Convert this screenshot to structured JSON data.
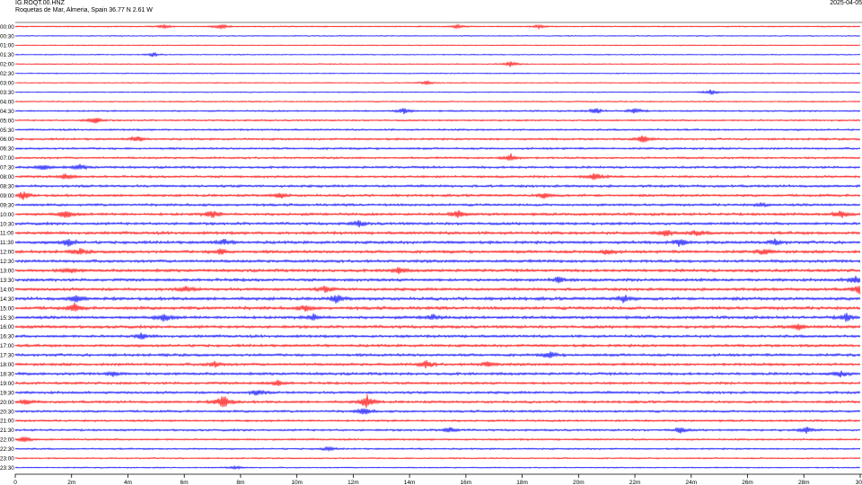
{
  "header": {
    "station": "IG.ROQT.00.HNZ",
    "location": "Roquetas de Mar, Almeria, Spain  36.77 N 2.61 W",
    "date": "2025-04-05"
  },
  "colors": {
    "even_row": "#ff0000",
    "odd_row": "#0000ff",
    "axis": "#000000"
  },
  "chart_data": {
    "type": "helicorder",
    "row_labels": [
      "00:00",
      "00:30",
      "01:00",
      "01:30",
      "02:00",
      "02:30",
      "03:00",
      "03:30",
      "04:00",
      "04:30",
      "05:00",
      "05:30",
      "06:00",
      "06:30",
      "07:00",
      "07:30",
      "08:00",
      "08:30",
      "09:00",
      "09:30",
      "10:00",
      "10:30",
      "11:00",
      "11:30",
      "12:00",
      "12:30",
      "13:00",
      "13:30",
      "14:00",
      "14:30",
      "15:00",
      "15:30",
      "16:00",
      "16:30",
      "17:00",
      "17:30",
      "18:00",
      "18:30",
      "19:00",
      "19:30",
      "20:00",
      "20:30",
      "21:00",
      "21:30",
      "22:00",
      "22:30",
      "23:00",
      "23:30"
    ],
    "x_ticks": [
      "0",
      "2m",
      "4m",
      "6m",
      "8m",
      "10m",
      "12m",
      "14m",
      "16m",
      "18m",
      "20m",
      "22m",
      "24m",
      "26m",
      "28m",
      "30"
    ],
    "x_range_minutes": [
      0,
      30
    ],
    "row_interval_minutes": 30,
    "noise_levels": [
      0.6,
      0.5,
      0.5,
      0.5,
      0.5,
      0.5,
      0.5,
      0.5,
      0.6,
      0.8,
      0.8,
      0.9,
      1.0,
      1.0,
      1.0,
      1.1,
      1.1,
      1.2,
      1.2,
      1.2,
      1.3,
      1.3,
      1.4,
      1.4,
      1.4,
      1.4,
      1.4,
      1.4,
      1.4,
      1.5,
      1.5,
      1.4,
      1.4,
      1.3,
      1.3,
      1.3,
      1.3,
      1.3,
      1.2,
      1.2,
      1.2,
      1.1,
      1.0,
      1.0,
      0.9,
      0.8,
      0.7,
      0.6
    ],
    "events": [
      {
        "row": 0,
        "minute": 5.3,
        "amp": 2
      },
      {
        "row": 0,
        "minute": 7.3,
        "amp": 3
      },
      {
        "row": 0,
        "minute": 15.7,
        "amp": 2
      },
      {
        "row": 0,
        "minute": 18.6,
        "amp": 2
      },
      {
        "row": 3,
        "minute": 4.9,
        "amp": 2
      },
      {
        "row": 4,
        "minute": 17.6,
        "amp": 3
      },
      {
        "row": 6,
        "minute": 14.6,
        "amp": 2
      },
      {
        "row": 7,
        "minute": 24.7,
        "amp": 3
      },
      {
        "row": 9,
        "minute": 13.8,
        "amp": 3
      },
      {
        "row": 9,
        "minute": 20.6,
        "amp": 3
      },
      {
        "row": 9,
        "minute": 22.0,
        "amp": 3
      },
      {
        "row": 10,
        "minute": 2.8,
        "amp": 4
      },
      {
        "row": 12,
        "minute": 4.3,
        "amp": 3
      },
      {
        "row": 12,
        "minute": 22.3,
        "amp": 4
      },
      {
        "row": 14,
        "minute": 17.6,
        "amp": 4
      },
      {
        "row": 15,
        "minute": 1.0,
        "amp": 3
      },
      {
        "row": 15,
        "minute": 2.3,
        "amp": 3
      },
      {
        "row": 16,
        "minute": 1.8,
        "amp": 3
      },
      {
        "row": 16,
        "minute": 20.6,
        "amp": 4
      },
      {
        "row": 18,
        "minute": 0.3,
        "amp": 4
      },
      {
        "row": 18,
        "minute": 9.4,
        "amp": 3
      },
      {
        "row": 18,
        "minute": 18.8,
        "amp": 3
      },
      {
        "row": 19,
        "minute": 26.5,
        "amp": 2
      },
      {
        "row": 20,
        "minute": 1.8,
        "amp": 4
      },
      {
        "row": 20,
        "minute": 7.0,
        "amp": 4
      },
      {
        "row": 20,
        "minute": 15.7,
        "amp": 4
      },
      {
        "row": 20,
        "minute": 29.3,
        "amp": 4
      },
      {
        "row": 21,
        "minute": 12.2,
        "amp": 3
      },
      {
        "row": 22,
        "minute": 23.1,
        "amp": 4
      },
      {
        "row": 22,
        "minute": 24.2,
        "amp": 3
      },
      {
        "row": 23,
        "minute": 1.9,
        "amp": 4
      },
      {
        "row": 23,
        "minute": 7.4,
        "amp": 3
      },
      {
        "row": 23,
        "minute": 23.6,
        "amp": 4
      },
      {
        "row": 23,
        "minute": 27.0,
        "amp": 3
      },
      {
        "row": 24,
        "minute": 2.3,
        "amp": 3
      },
      {
        "row": 24,
        "minute": 7.3,
        "amp": 3
      },
      {
        "row": 24,
        "minute": 21.0,
        "amp": 3
      },
      {
        "row": 24,
        "minute": 26.6,
        "amp": 3
      },
      {
        "row": 26,
        "minute": 1.9,
        "amp": 3
      },
      {
        "row": 26,
        "minute": 13.6,
        "amp": 3
      },
      {
        "row": 27,
        "minute": 19.3,
        "amp": 3
      },
      {
        "row": 27,
        "minute": 29.8,
        "amp": 4
      },
      {
        "row": 28,
        "minute": 6.1,
        "amp": 3
      },
      {
        "row": 28,
        "minute": 11.0,
        "amp": 3
      },
      {
        "row": 28,
        "minute": 30.0,
        "amp": 5
      },
      {
        "row": 29,
        "minute": 2.2,
        "amp": 4
      },
      {
        "row": 29,
        "minute": 11.4,
        "amp": 4
      },
      {
        "row": 29,
        "minute": 21.6,
        "amp": 4
      },
      {
        "row": 30,
        "minute": 2.1,
        "amp": 4
      },
      {
        "row": 30,
        "minute": 10.3,
        "amp": 3
      },
      {
        "row": 31,
        "minute": 5.3,
        "amp": 4
      },
      {
        "row": 31,
        "minute": 10.6,
        "amp": 3
      },
      {
        "row": 31,
        "minute": 14.8,
        "amp": 3
      },
      {
        "row": 31,
        "minute": 29.5,
        "amp": 4
      },
      {
        "row": 32,
        "minute": 27.8,
        "amp": 3
      },
      {
        "row": 33,
        "minute": 4.5,
        "amp": 3
      },
      {
        "row": 35,
        "minute": 19.0,
        "amp": 3
      },
      {
        "row": 36,
        "minute": 14.6,
        "amp": 4
      },
      {
        "row": 36,
        "minute": 16.8,
        "amp": 3
      },
      {
        "row": 36,
        "minute": 7.1,
        "amp": 3
      },
      {
        "row": 37,
        "minute": 3.5,
        "amp": 3
      },
      {
        "row": 37,
        "minute": 29.3,
        "amp": 3
      },
      {
        "row": 38,
        "minute": 9.3,
        "amp": 3
      },
      {
        "row": 39,
        "minute": 8.6,
        "amp": 3
      },
      {
        "row": 40,
        "minute": 7.4,
        "amp": 9
      },
      {
        "row": 40,
        "minute": 12.5,
        "amp": 7
      },
      {
        "row": 40,
        "minute": 0.4,
        "amp": 3
      },
      {
        "row": 41,
        "minute": 12.4,
        "amp": 4
      },
      {
        "row": 43,
        "minute": 15.4,
        "amp": 3
      },
      {
        "row": 43,
        "minute": 23.6,
        "amp": 3
      },
      {
        "row": 43,
        "minute": 28.1,
        "amp": 3
      },
      {
        "row": 44,
        "minute": 0.3,
        "amp": 3
      },
      {
        "row": 45,
        "minute": 11.1,
        "amp": 2
      },
      {
        "row": 47,
        "minute": 7.8,
        "amp": 2
      }
    ]
  }
}
